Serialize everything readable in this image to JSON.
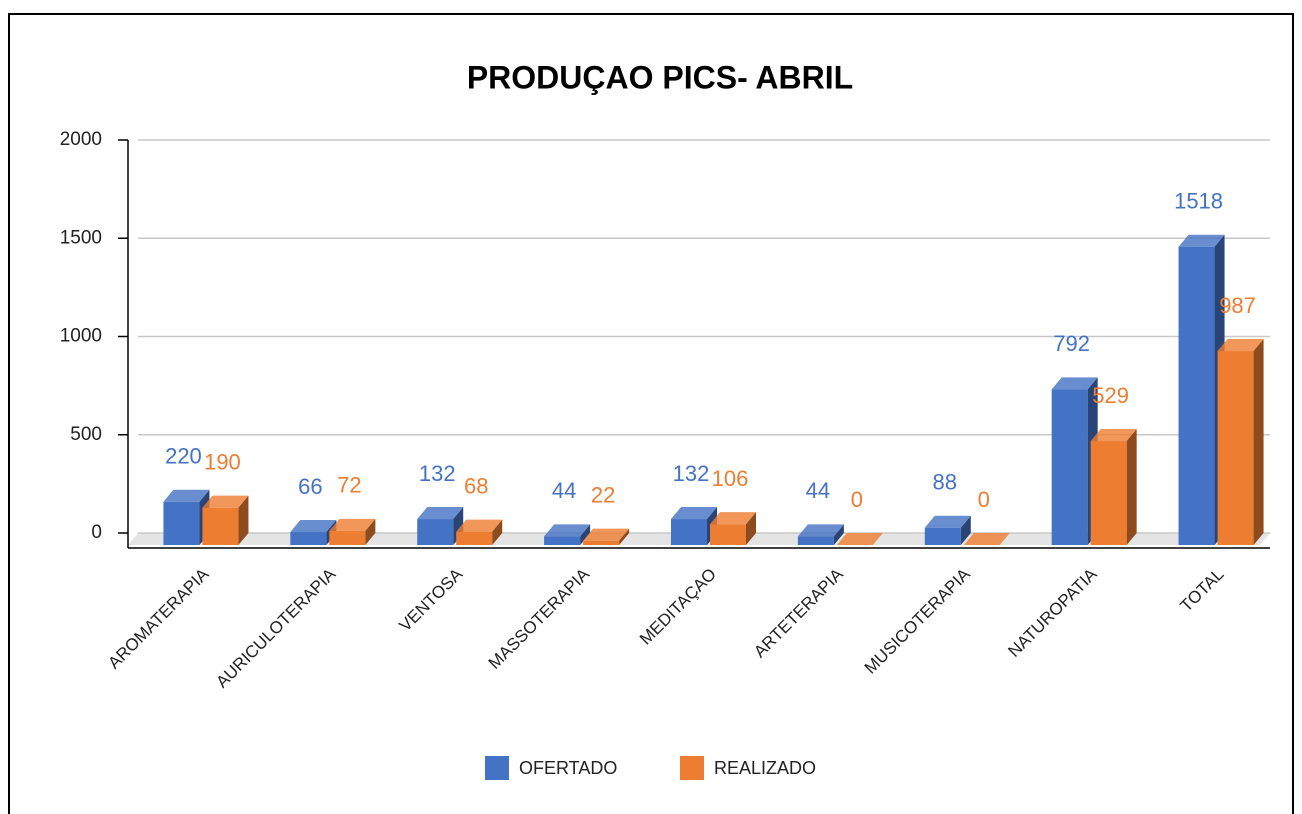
{
  "chart_data": {
    "type": "bar3d",
    "title": "PRODUÇAO PICS- ABRIL",
    "categories": [
      "AROMATERAPIA",
      "AURICULOTERAPIA",
      "VENTOSA",
      "MASSOTERAPIA",
      "MEDITAÇAO",
      "ARTETERAPIA",
      "MUSICOTERAPIA",
      "NATUROPATIA",
      "TOTAL"
    ],
    "series": [
      {
        "name": "OFERTADO",
        "color": "#4472c4",
        "values": [
          220,
          66,
          132,
          44,
          132,
          44,
          88,
          792,
          1518
        ]
      },
      {
        "name": "REALIZADO",
        "color": "#ed7d31",
        "values": [
          190,
          72,
          68,
          22,
          106,
          0,
          0,
          529,
          987
        ]
      }
    ],
    "ylim": [
      0,
      2000
    ],
    "yticks": [
      0,
      500,
      1000,
      1500,
      2000
    ],
    "grid": true,
    "legend": "bottom"
  }
}
